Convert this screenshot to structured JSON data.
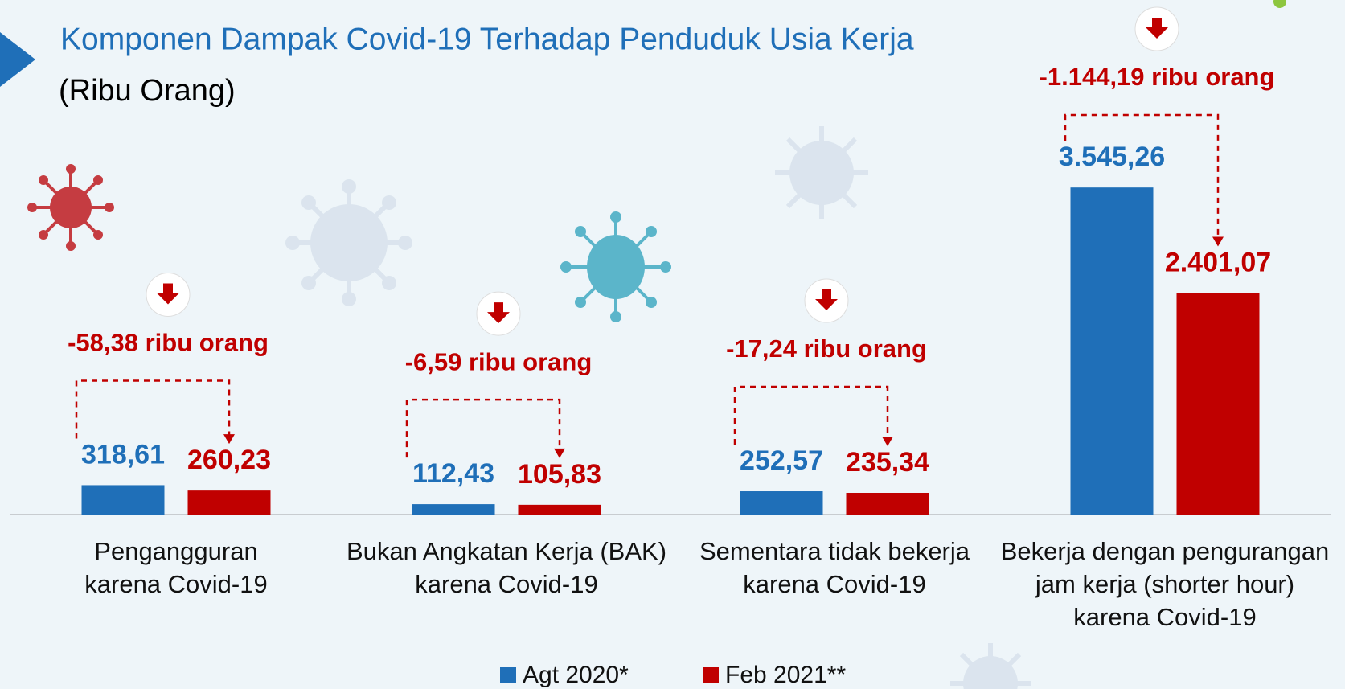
{
  "chart_data": {
    "type": "bar",
    "title": "Komponen Dampak Covid-19 Terhadap Penduduk Usia Kerja",
    "subtitle": "(Ribu Orang)",
    "categories": [
      "Pengangguran\nkarena Covid-19",
      "Bukan Angkatan Kerja (BAK)\nkarena Covid-19",
      "Sementara tidak bekerja\nkarena Covid-19",
      "Bekerja dengan pengurangan\njam kerja (shorter hour)\nkarena Covid-19"
    ],
    "series": [
      {
        "name": "Agt 2020*",
        "color": "#1f6fb8",
        "values": [
          318.61,
          112.43,
          252.57,
          3545.26
        ],
        "value_labels": [
          "318,61",
          "112,43",
          "252,57",
          "3.545,26"
        ]
      },
      {
        "name": "Feb 2021**",
        "color": "#c00000",
        "values": [
          260.23,
          105.83,
          235.34,
          2401.07
        ],
        "value_labels": [
          "260,23",
          "105,83",
          "235,34",
          "2.401,07"
        ]
      }
    ],
    "annotations": [
      "-58,38 ribu orang",
      "-6,59 ribu orang",
      "-17,24 ribu orang",
      "-1.144,19 ribu orang"
    ],
    "ylim": [
      0,
      4000
    ]
  }
}
